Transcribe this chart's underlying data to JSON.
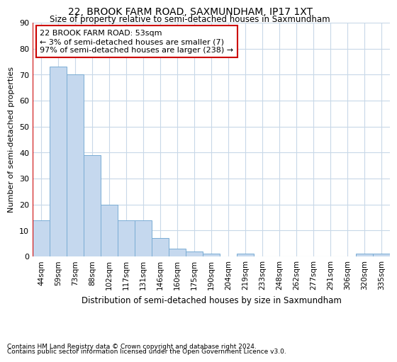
{
  "title": "22, BROOK FARM ROAD, SAXMUNDHAM, IP17 1XT",
  "subtitle": "Size of property relative to semi-detached houses in Saxmundham",
  "xlabel": "Distribution of semi-detached houses by size in Saxmundham",
  "ylabel": "Number of semi-detached properties",
  "footer_line1": "Contains HM Land Registry data © Crown copyright and database right 2024.",
  "footer_line2": "Contains public sector information licensed under the Open Government Licence v3.0.",
  "annotation_line1": "22 BROOK FARM ROAD: 53sqm",
  "annotation_line2": "← 3% of semi-detached houses are smaller (7)",
  "annotation_line3": "97% of semi-detached houses are larger (238) →",
  "bar_labels": [
    "44sqm",
    "59sqm",
    "73sqm",
    "88sqm",
    "102sqm",
    "117sqm",
    "131sqm",
    "146sqm",
    "160sqm",
    "175sqm",
    "190sqm",
    "204sqm",
    "219sqm",
    "233sqm",
    "248sqm",
    "262sqm",
    "277sqm",
    "291sqm",
    "306sqm",
    "320sqm",
    "335sqm"
  ],
  "bar_values": [
    14,
    73,
    70,
    39,
    20,
    14,
    14,
    7,
    3,
    2,
    1,
    0,
    1,
    0,
    0,
    0,
    0,
    0,
    0,
    1,
    1
  ],
  "bar_color": "#c5d8ee",
  "bar_edge_color": "#7aadd4",
  "red_line_color": "#cc0000",
  "annotation_box_color": "#cc0000",
  "background_color": "#ffffff",
  "grid_color": "#c8d8e8",
  "ylim": [
    0,
    90
  ],
  "yticks": [
    0,
    10,
    20,
    30,
    40,
    50,
    60,
    70,
    80,
    90
  ],
  "red_line_x": -0.5
}
